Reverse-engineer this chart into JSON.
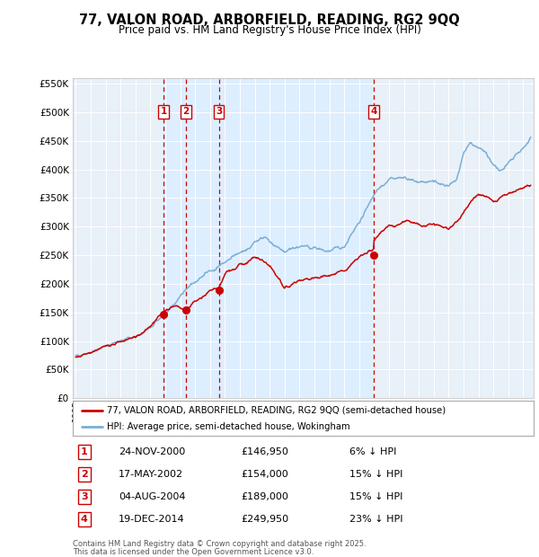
{
  "title": "77, VALON ROAD, ARBORFIELD, READING, RG2 9QQ",
  "subtitle": "Price paid vs. HM Land Registry's House Price Index (HPI)",
  "legend_property": "77, VALON ROAD, ARBORFIELD, READING, RG2 9QQ (semi-detached house)",
  "legend_hpi": "HPI: Average price, semi-detached house, Wokingham",
  "footer1": "Contains HM Land Registry data © Crown copyright and database right 2025.",
  "footer2": "This data is licensed under the Open Government Licence v3.0.",
  "transactions": [
    {
      "num": 1,
      "date": "24-NOV-2000",
      "price": 146950,
      "pct": "6%",
      "dir": "↓",
      "year_x": 2000.9
    },
    {
      "num": 2,
      "date": "17-MAY-2002",
      "price": 154000,
      "pct": "15%",
      "dir": "↓",
      "year_x": 2002.38
    },
    {
      "num": 3,
      "date": "04-AUG-2004",
      "price": 189000,
      "pct": "15%",
      "dir": "↓",
      "year_x": 2004.59
    },
    {
      "num": 4,
      "date": "19-DEC-2014",
      "price": 249950,
      "pct": "23%",
      "dir": "↓",
      "year_x": 2014.96
    }
  ],
  "color_property": "#cc0000",
  "color_hpi": "#7bafd4",
  "color_vline": "#cc0000",
  "color_shade": "#ddeeff",
  "ylim": [
    0,
    560000
  ],
  "yticks": [
    0,
    50000,
    100000,
    150000,
    200000,
    250000,
    300000,
    350000,
    400000,
    450000,
    500000,
    550000
  ],
  "xlim_start": 1994.8,
  "xlim_end": 2025.7,
  "background_color": "#ffffff",
  "plot_bg_color": "#e8f0f8"
}
